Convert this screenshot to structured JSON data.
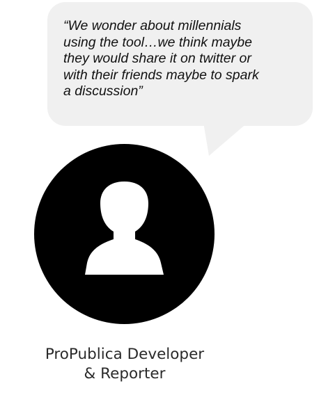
{
  "quote": {
    "lines": [
      "“We wonder about millennials",
      "using the tool…we think maybe",
      "they would share it on twitter or",
      "with their friends maybe to spark",
      "a discussion”"
    ]
  },
  "person": {
    "icon": "user-silhouette-icon",
    "name_lines": [
      "ProPublica Developer",
      "& Reporter"
    ]
  },
  "colors": {
    "bubble": "#f0f0f0",
    "avatar": "#000000",
    "silhouette": "#ffffff",
    "text": "#111111"
  }
}
